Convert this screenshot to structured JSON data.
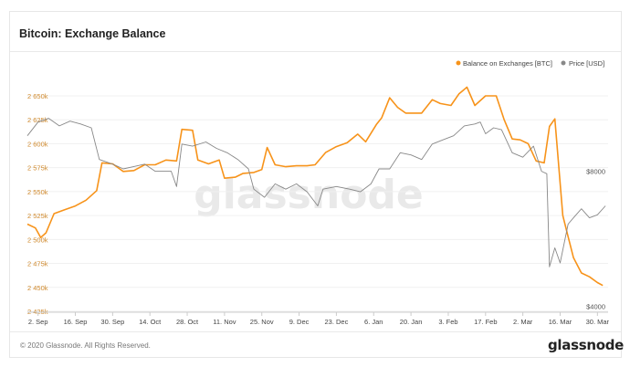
{
  "title": "Bitcoin: Exchange Balance",
  "footer": {
    "copyright": "© 2020 Glassnode. All Rights Reserved.",
    "brand": "glassnode"
  },
  "watermark": "glassnode",
  "colors": {
    "balance": "#f7931a",
    "price": "#888888",
    "axis_left": "#d08a2e",
    "axis_right": "#555555"
  },
  "chart_data": {
    "type": "line",
    "title": "Bitcoin: Exchange Balance",
    "legend_position": "top-right",
    "x_ticks": [
      "2. Sep",
      "16. Sep",
      "30. Sep",
      "14. Oct",
      "28. Oct",
      "11. Nov",
      "25. Nov",
      "9. Dec",
      "23. Dec",
      "6. Jan",
      "20. Jan",
      "3. Feb",
      "17. Feb",
      "2. Mar",
      "16. Mar",
      "30. Mar"
    ],
    "x_range": [
      "2019-08-29",
      "2020-04-03"
    ],
    "y_left": {
      "ticks": [
        "2 425k",
        "2 450k",
        "2 475k",
        "2 500k",
        "2 525k",
        "2 550k",
        "2 575k",
        "2 600k",
        "2 625k",
        "2 650k"
      ],
      "range": [
        2425000,
        2670000
      ]
    },
    "y_right": {
      "ticks": [
        "$4000",
        "$8000"
      ],
      "scale": "log",
      "range": [
        3900,
        13000
      ]
    },
    "series": [
      {
        "name": "Balance on Exchanges [BTC]",
        "axis": "left",
        "points": [
          [
            "2019-08-29",
            2516000
          ],
          [
            "2019-09-01",
            2512000
          ],
          [
            "2019-09-03",
            2502000
          ],
          [
            "2019-09-05",
            2507000
          ],
          [
            "2019-09-08",
            2527000
          ],
          [
            "2019-09-12",
            2531000
          ],
          [
            "2019-09-16",
            2535000
          ],
          [
            "2019-09-20",
            2541000
          ],
          [
            "2019-09-24",
            2551000
          ],
          [
            "2019-09-26",
            2580000
          ],
          [
            "2019-09-30",
            2579000
          ],
          [
            "2019-10-04",
            2571000
          ],
          [
            "2019-10-08",
            2572000
          ],
          [
            "2019-10-12",
            2578000
          ],
          [
            "2019-10-16",
            2578000
          ],
          [
            "2019-10-20",
            2583000
          ],
          [
            "2019-10-24",
            2582000
          ],
          [
            "2019-10-26",
            2615000
          ],
          [
            "2019-10-30",
            2614000
          ],
          [
            "2019-11-01",
            2583000
          ],
          [
            "2019-11-05",
            2579000
          ],
          [
            "2019-11-09",
            2583000
          ],
          [
            "2019-11-11",
            2564000
          ],
          [
            "2019-11-15",
            2565000
          ],
          [
            "2019-11-18",
            2569000
          ],
          [
            "2019-11-22",
            2570000
          ],
          [
            "2019-11-25",
            2573000
          ],
          [
            "2019-11-27",
            2596000
          ],
          [
            "2019-11-30",
            2578000
          ],
          [
            "2019-12-04",
            2576000
          ],
          [
            "2019-12-08",
            2577000
          ],
          [
            "2019-12-12",
            2577000
          ],
          [
            "2019-12-15",
            2578000
          ],
          [
            "2019-12-19",
            2591000
          ],
          [
            "2019-12-23",
            2597000
          ],
          [
            "2019-12-27",
            2601000
          ],
          [
            "2019-12-31",
            2610000
          ],
          [
            "2020-01-03",
            2602000
          ],
          [
            "2020-01-07",
            2620000
          ],
          [
            "2020-01-09",
            2627000
          ],
          [
            "2020-01-12",
            2648000
          ],
          [
            "2020-01-15",
            2638000
          ],
          [
            "2020-01-18",
            2632000
          ],
          [
            "2020-01-21",
            2632000
          ],
          [
            "2020-01-24",
            2632000
          ],
          [
            "2020-01-28",
            2646000
          ],
          [
            "2020-01-31",
            2642000
          ],
          [
            "2020-02-04",
            2640000
          ],
          [
            "2020-02-07",
            2652000
          ],
          [
            "2020-02-10",
            2659000
          ],
          [
            "2020-02-13",
            2640000
          ],
          [
            "2020-02-17",
            2650000
          ],
          [
            "2020-02-21",
            2650000
          ],
          [
            "2020-02-24",
            2625000
          ],
          [
            "2020-02-27",
            2605000
          ],
          [
            "2020-03-01",
            2604000
          ],
          [
            "2020-03-04",
            2600000
          ],
          [
            "2020-03-07",
            2582000
          ],
          [
            "2020-03-10",
            2580000
          ],
          [
            "2020-03-12",
            2618000
          ],
          [
            "2020-03-14",
            2626000
          ],
          [
            "2020-03-17",
            2525000
          ],
          [
            "2020-03-19",
            2503000
          ],
          [
            "2020-03-21",
            2481000
          ],
          [
            "2020-03-24",
            2465000
          ],
          [
            "2020-03-27",
            2461000
          ],
          [
            "2020-03-30",
            2455000
          ],
          [
            "2020-04-01",
            2452000
          ]
        ]
      },
      {
        "name": "Price [USD]",
        "axis": "right",
        "points": [
          [
            "2019-08-29",
            9600
          ],
          [
            "2019-09-02",
            10300
          ],
          [
            "2019-09-06",
            10500
          ],
          [
            "2019-09-10",
            10100
          ],
          [
            "2019-09-14",
            10350
          ],
          [
            "2019-09-18",
            10200
          ],
          [
            "2019-09-22",
            10000
          ],
          [
            "2019-09-25",
            8500
          ],
          [
            "2019-09-30",
            8300
          ],
          [
            "2019-10-04",
            8100
          ],
          [
            "2019-10-08",
            8200
          ],
          [
            "2019-10-12",
            8300
          ],
          [
            "2019-10-16",
            8000
          ],
          [
            "2019-10-22",
            8000
          ],
          [
            "2019-10-24",
            7400
          ],
          [
            "2019-10-26",
            9200
          ],
          [
            "2019-10-30",
            9100
          ],
          [
            "2019-11-04",
            9300
          ],
          [
            "2019-11-08",
            9000
          ],
          [
            "2019-11-12",
            8800
          ],
          [
            "2019-11-16",
            8500
          ],
          [
            "2019-11-20",
            8100
          ],
          [
            "2019-11-22",
            7300
          ],
          [
            "2019-11-26",
            7000
          ],
          [
            "2019-11-30",
            7500
          ],
          [
            "2019-12-04",
            7300
          ],
          [
            "2019-12-08",
            7500
          ],
          [
            "2019-12-12",
            7200
          ],
          [
            "2019-12-16",
            6700
          ],
          [
            "2019-12-18",
            7300
          ],
          [
            "2019-12-23",
            7400
          ],
          [
            "2019-12-28",
            7300
          ],
          [
            "2020-01-01",
            7200
          ],
          [
            "2020-01-05",
            7500
          ],
          [
            "2020-01-08",
            8100
          ],
          [
            "2020-01-12",
            8100
          ],
          [
            "2020-01-16",
            8800
          ],
          [
            "2020-01-20",
            8700
          ],
          [
            "2020-01-24",
            8500
          ],
          [
            "2020-01-28",
            9200
          ],
          [
            "2020-02-01",
            9400
          ],
          [
            "2020-02-05",
            9600
          ],
          [
            "2020-02-09",
            10100
          ],
          [
            "2020-02-13",
            10200
          ],
          [
            "2020-02-15",
            10300
          ],
          [
            "2020-02-17",
            9700
          ],
          [
            "2020-02-20",
            10000
          ],
          [
            "2020-02-23",
            9900
          ],
          [
            "2020-02-27",
            8800
          ],
          [
            "2020-03-02",
            8600
          ],
          [
            "2020-03-06",
            9100
          ],
          [
            "2020-03-09",
            8000
          ],
          [
            "2020-03-11",
            7900
          ],
          [
            "2020-03-12",
            4900
          ],
          [
            "2020-03-14",
            5400
          ],
          [
            "2020-03-16",
            5000
          ],
          [
            "2020-03-19",
            6100
          ],
          [
            "2020-03-21",
            6300
          ],
          [
            "2020-03-24",
            6600
          ],
          [
            "2020-03-27",
            6300
          ],
          [
            "2020-03-30",
            6400
          ],
          [
            "2020-04-02",
            6700
          ]
        ]
      }
    ]
  }
}
